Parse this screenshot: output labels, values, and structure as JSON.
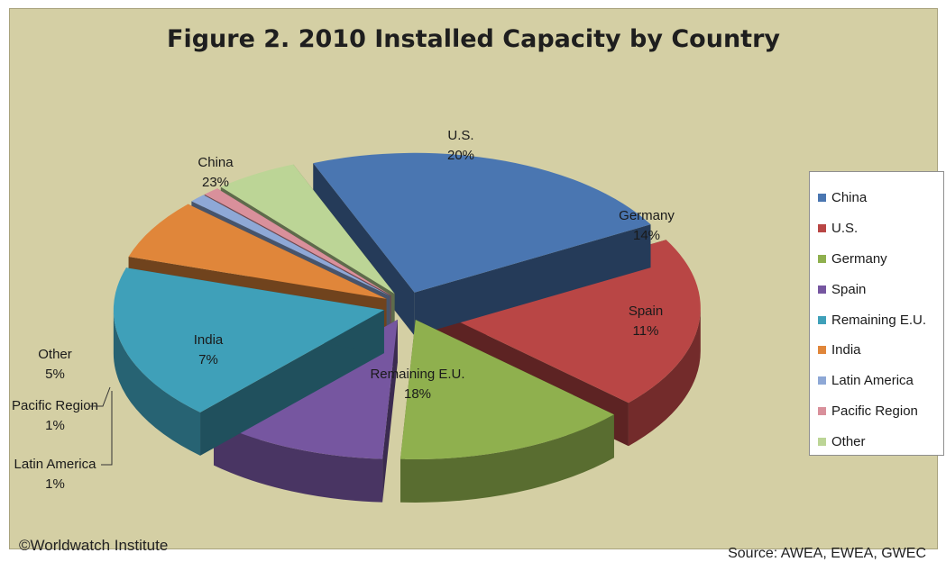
{
  "chart_data": {
    "type": "pie",
    "title": "Figure 2. 2010 Installed Capacity by Country",
    "categories": [
      "China",
      "U.S.",
      "Germany",
      "Spain",
      "Remaining E.U.",
      "India",
      "Latin America",
      "Pacific Region",
      "Other"
    ],
    "values": [
      23,
      20,
      14,
      11,
      18,
      7,
      1,
      1,
      5
    ],
    "value_labels": [
      "23%",
      "20%",
      "14%",
      "11%",
      "18%",
      "7%",
      "1%",
      "1%",
      "5%"
    ],
    "colors": [
      "#4a76b1",
      "#b94645",
      "#8fb04e",
      "#7656a0",
      "#3fa0b9",
      "#e0863a",
      "#8ea8d6",
      "#d9909b",
      "#bcd596"
    ],
    "style": "3d-exploded",
    "legend_position": "right"
  },
  "footer": {
    "copyright": "©Worldwatch Institute",
    "source": "Source: AWEA, EWEA, GWEC"
  }
}
